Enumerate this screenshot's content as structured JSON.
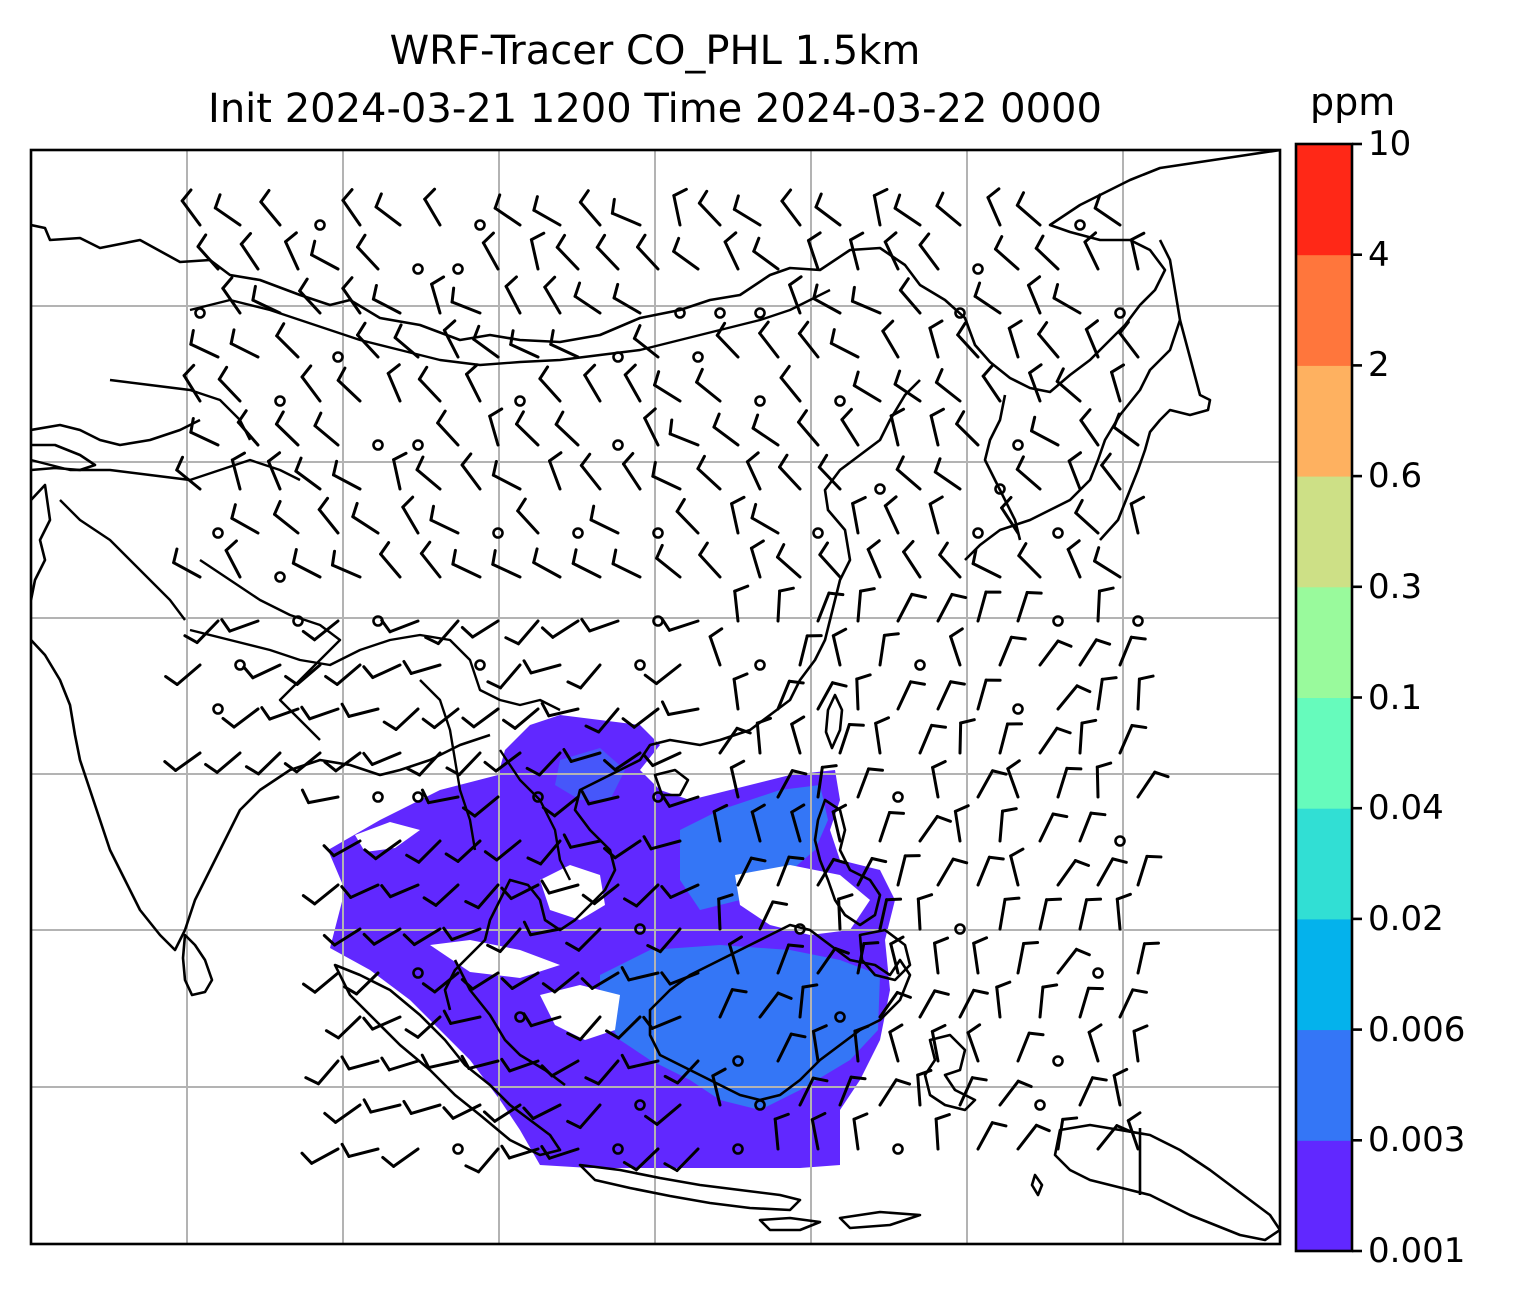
{
  "title_line1": "WRF-Tracer CO_PHL 1.5km",
  "title_line2": "Init 2024-03-21 1200 Time 2024-03-22 0000",
  "colorbar": {
    "unit": "ppm",
    "levels": [
      "0.001",
      "0.003",
      "0.006",
      "0.02",
      "0.04",
      "0.1",
      "0.3",
      "0.6",
      "2",
      "4",
      "10"
    ],
    "colors": [
      "#6128ff",
      "#3476f6",
      "#04b2ec",
      "#31dfd4",
      "#66fbbc",
      "#99fa9c",
      "#cde086",
      "#feb160",
      "#ff763c",
      "#ff2817"
    ]
  },
  "map": {
    "gridlines": true,
    "field_color": "#6128ff",
    "field_secondary_color": "#3476f6"
  }
}
